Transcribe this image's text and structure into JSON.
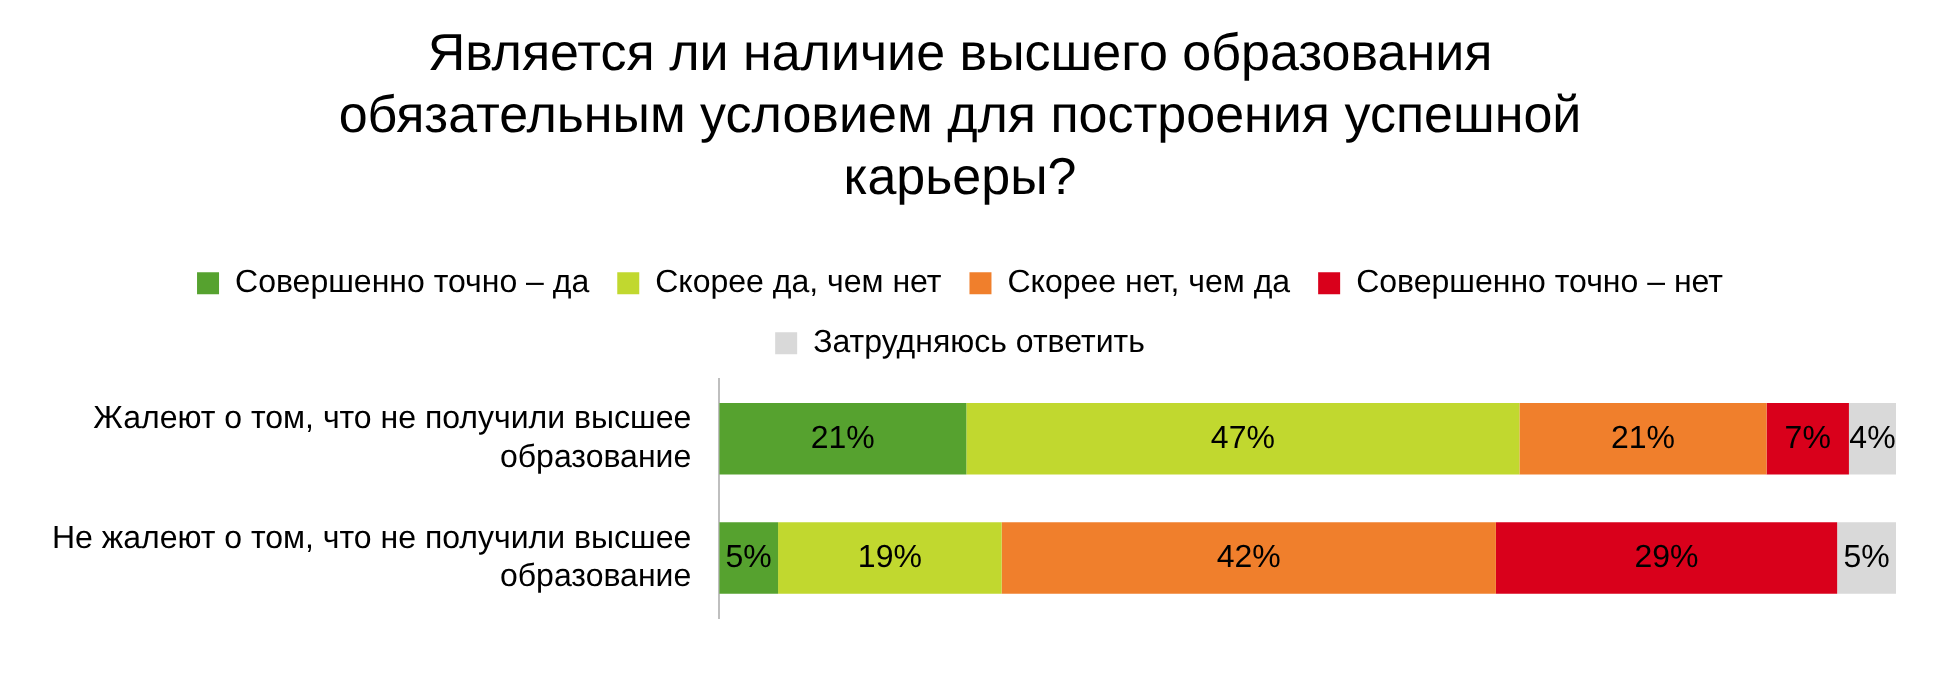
{
  "chart_data": {
    "type": "bar",
    "orientation": "horizontal",
    "stacked": true,
    "title": "Является ли наличие высшего образования обязательным условием для построения успешной карьеры?",
    "categories": [
      "Жалеют о том, что не получили высшее образование",
      "Не жалеют о том, что не получили высшее образование"
    ],
    "series": [
      {
        "name": "Совершенно точно – да",
        "color": "#56a22f",
        "values": [
          21,
          5
        ],
        "value_labels": [
          "21%",
          "5%"
        ]
      },
      {
        "name": "Скорее да, чем нет",
        "color": "#c1d82f",
        "values": [
          47,
          19
        ],
        "value_labels": [
          "47%",
          "19%"
        ]
      },
      {
        "name": "Скорее нет, чем да",
        "color": "#f07f2c",
        "values": [
          21,
          42
        ],
        "value_labels": [
          "21%",
          "42%"
        ]
      },
      {
        "name": "Совершенно точно – нет",
        "color": "#d9001b",
        "values": [
          7,
          29
        ],
        "value_labels": [
          "7%",
          "29%"
        ]
      },
      {
        "name": "Затрудняюсь ответить",
        "color": "#d9d9d9",
        "values": [
          4,
          5
        ],
        "value_labels": [
          "4%",
          "5%"
        ]
      }
    ],
    "legend": "top"
  }
}
